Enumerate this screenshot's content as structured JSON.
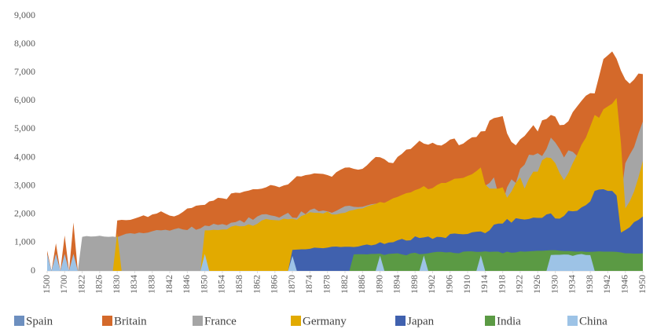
{
  "chart_data": {
    "type": "area",
    "categories": [
      1500,
      null,
      null,
      null,
      1700,
      null,
      null,
      null,
      1822,
      null,
      null,
      null,
      1826,
      null,
      null,
      null,
      1830,
      null,
      null,
      null,
      1834,
      null,
      null,
      null,
      1838,
      null,
      null,
      null,
      1842,
      null,
      null,
      null,
      1846,
      null,
      null,
      null,
      1850,
      null,
      null,
      null,
      1854,
      null,
      null,
      null,
      1858,
      null,
      null,
      null,
      1862,
      null,
      null,
      null,
      1866,
      null,
      null,
      null,
      1870,
      null,
      null,
      null,
      1874,
      null,
      null,
      null,
      1878,
      null,
      null,
      null,
      1882,
      null,
      null,
      null,
      1886,
      null,
      null,
      null,
      1890,
      null,
      null,
      null,
      1894,
      null,
      null,
      null,
      1898,
      null,
      null,
      null,
      1902,
      null,
      null,
      null,
      1906,
      null,
      null,
      null,
      1910,
      null,
      null,
      null,
      1914,
      null,
      null,
      null,
      1918,
      null,
      null,
      null,
      1922,
      null,
      null,
      null,
      1926,
      null,
      null,
      null,
      1930,
      null,
      null,
      null,
      1934,
      null,
      null,
      null,
      1938,
      null,
      null,
      null,
      1942,
      null,
      null,
      null,
      1946,
      null,
      null,
      null,
      1950
    ],
    "series": [
      {
        "name": "Spain",
        "color": "#6d8fbf",
        "values": [
          661,
          null,
          853,
          null,
          853,
          null,
          1008,
          null,
          null,
          null,
          null,
          null,
          null,
          null,
          null,
          null,
          null,
          null,
          null,
          null,
          null,
          null,
          null,
          null,
          null,
          null,
          null,
          null,
          null,
          null,
          null,
          null,
          null,
          null,
          null,
          null,
          null,
          null,
          null,
          null,
          null,
          null,
          null,
          null,
          null,
          null,
          null,
          null,
          null,
          null,
          null,
          null,
          null,
          null,
          null,
          null,
          null,
          null,
          null,
          null,
          null,
          null,
          null,
          null,
          null,
          null,
          null,
          null,
          null,
          null,
          null,
          null,
          null,
          null,
          null,
          null,
          null,
          null,
          null,
          null,
          null,
          null,
          null,
          null,
          null,
          null,
          null,
          null,
          null,
          null,
          null,
          null,
          null,
          null,
          null,
          null,
          null,
          null,
          null,
          null,
          null,
          null,
          null,
          null,
          null,
          null,
          null,
          null,
          null,
          null,
          null,
          null,
          null,
          null,
          null,
          null,
          null,
          null,
          null,
          null,
          null,
          null,
          null,
          null,
          null,
          null,
          null,
          null,
          null,
          null,
          null,
          null,
          null,
          null,
          null,
          null,
          null
        ]
      },
      {
        "name": "Britain",
        "color": "#d4692a",
        "values": [
          714,
          null,
          974,
          null,
          1250,
          null,
          1706,
          null,
          null,
          null,
          null,
          null,
          null,
          null,
          null,
          null,
          1780,
          1800,
          1790,
          1800,
          1850,
          1900,
          1960,
          1900,
          1990,
          2020,
          2100,
          2020,
          1950,
          1920,
          1980,
          2080,
          2200,
          2220,
          2300,
          2320,
          2330,
          2450,
          2480,
          2580,
          2560,
          2530,
          2730,
          2760,
          2750,
          2800,
          2830,
          2880,
          2880,
          2900,
          2950,
          3030,
          3000,
          2950,
          3010,
          3050,
          3190,
          3340,
          3330,
          3380,
          3400,
          3440,
          3430,
          3420,
          3380,
          3320,
          3480,
          3570,
          3640,
          3650,
          3600,
          3570,
          3600,
          3720,
          3880,
          4020,
          4010,
          3940,
          3820,
          3800,
          4020,
          4130,
          4280,
          4300,
          4440,
          4590,
          4490,
          4450,
          4520,
          4440,
          4420,
          4510,
          4630,
          4670,
          4430,
          4490,
          4610,
          4710,
          4720,
          4920,
          4930,
          5300,
          5390,
          5420,
          5460,
          4850,
          4550,
          4430,
          4640,
          4760,
          4950,
          5140,
          4920,
          5310,
          5360,
          5500,
          5440,
          5140,
          5150,
          5280,
          5600,
          5800,
          6000,
          6180,
          6270,
          6260,
          6860,
          7470,
          7600,
          7740,
          7480,
          7060,
          6750,
          6600,
          6750,
          6960,
          6940
        ]
      },
      {
        "name": "France",
        "color": "#a5a5a5",
        "values": [
          null,
          null,
          null,
          null,
          null,
          null,
          null,
          null,
          1200,
          1230,
          1210,
          1220,
          1240,
          1210,
          1200,
          1210,
          1190,
          1250,
          1310,
          1330,
          1310,
          1350,
          1330,
          1350,
          1400,
          1440,
          1430,
          1450,
          1420,
          1470,
          1510,
          1460,
          1440,
          1560,
          1450,
          1500,
          1600,
          1580,
          1660,
          1620,
          1650,
          1610,
          1700,
          1720,
          1790,
          1700,
          1890,
          1800,
          1920,
          1990,
          2000,
          1960,
          1930,
          1880,
          1970,
          2050,
          1880,
          1870,
          2100,
          2000,
          2150,
          2200,
          2100,
          2130,
          2100,
          2050,
          2120,
          2200,
          2280,
          2300,
          2260,
          2250,
          2260,
          2310,
          2350,
          2370,
          2380,
          2400,
          2450,
          2450,
          2580,
          2550,
          2640,
          2600,
          2700,
          2850,
          2880,
          2860,
          2820,
          2880,
          2890,
          2920,
          2950,
          3070,
          3040,
          3150,
          2940,
          3180,
          3450,
          3480,
          3000,
          3100,
          3300,
          2700,
          2400,
          2950,
          3230,
          3100,
          3600,
          3750,
          4100,
          4080,
          4150,
          4050,
          4300,
          4700,
          4530,
          4300,
          4000,
          4250,
          4200,
          4050,
          4200,
          4450,
          4470,
          4800,
          3650,
          3250,
          3050,
          2800,
          2200,
          2600,
          3800,
          4100,
          4370,
          4850,
          5270
        ]
      },
      {
        "name": "Germany",
        "color": "#e2aa00",
        "values": [
          null,
          null,
          null,
          null,
          null,
          null,
          null,
          null,
          null,
          null,
          null,
          null,
          null,
          null,
          null,
          null,
          1330,
          null,
          null,
          null,
          null,
          null,
          null,
          null,
          null,
          null,
          null,
          null,
          null,
          null,
          null,
          null,
          null,
          null,
          null,
          null,
          1430,
          1430,
          1450,
          1440,
          1460,
          1460,
          1560,
          1600,
          1570,
          1580,
          1640,
          1590,
          1660,
          1780,
          1830,
          1800,
          1790,
          1780,
          1840,
          1820,
          1840,
          1800,
          1930,
          1990,
          2070,
          2050,
          2050,
          2020,
          2090,
          1990,
          1990,
          2030,
          2050,
          2120,
          2150,
          2190,
          2200,
          2270,
          2320,
          2360,
          2430,
          2400,
          2480,
          2560,
          2610,
          2680,
          2740,
          2770,
          2850,
          2900,
          2990,
          2880,
          2920,
          3030,
          3100,
          3100,
          3170,
          3250,
          3260,
          3280,
          3350,
          3410,
          3520,
          3650,
          3050,
          2900,
          2900,
          2900,
          2950,
          2580,
          2800,
          3100,
          3300,
          2900,
          3250,
          3500,
          3500,
          3900,
          4000,
          3980,
          3800,
          3450,
          3200,
          3450,
          3800,
          4100,
          4450,
          4700,
          5100,
          5500,
          5400,
          5700,
          5800,
          5900,
          6100,
          4500,
          2200,
          2450,
          2800,
          3300,
          3880
        ]
      },
      {
        "name": "Japan",
        "color": "#4061ae",
        "values": [
          null,
          null,
          null,
          null,
          null,
          null,
          null,
          null,
          null,
          null,
          null,
          null,
          null,
          null,
          null,
          null,
          null,
          null,
          null,
          null,
          null,
          null,
          null,
          null,
          null,
          null,
          null,
          null,
          null,
          null,
          null,
          null,
          null,
          null,
          null,
          null,
          null,
          null,
          null,
          null,
          null,
          null,
          null,
          null,
          null,
          null,
          null,
          null,
          null,
          null,
          null,
          null,
          null,
          null,
          null,
          null,
          740,
          750,
          760,
          760,
          780,
          820,
          810,
          800,
          820,
          850,
          860,
          840,
          850,
          850,
          840,
          860,
          900,
          930,
          900,
          930,
          1010,
          950,
          1000,
          1010,
          1080,
          1130,
          1070,
          1080,
          1220,
          1160,
          1180,
          1210,
          1130,
          1200,
          1190,
          1160,
          1300,
          1320,
          1300,
          1290,
          1300,
          1360,
          1380,
          1390,
          1330,
          1430,
          1630,
          1670,
          1670,
          1830,
          1700,
          1860,
          1830,
          1810,
          1830,
          1880,
          1870,
          1870,
          1990,
          2030,
          1850,
          1840,
          1940,
          2120,
          2100,
          2120,
          2240,
          2320,
          2450,
          2820,
          2870,
          2880,
          2820,
          2820,
          2660,
          1350,
          1440,
          1540,
          1720,
          1800,
          1920
        ]
      },
      {
        "name": "India",
        "color": "#5b9a44",
        "values": [
          null,
          null,
          null,
          null,
          null,
          null,
          null,
          null,
          null,
          null,
          null,
          null,
          null,
          null,
          null,
          null,
          null,
          null,
          null,
          null,
          null,
          null,
          null,
          null,
          null,
          null,
          null,
          null,
          null,
          null,
          null,
          null,
          null,
          null,
          null,
          null,
          null,
          null,
          null,
          null,
          null,
          null,
          null,
          null,
          null,
          null,
          null,
          null,
          null,
          null,
          null,
          null,
          null,
          null,
          null,
          null,
          null,
          null,
          null,
          null,
          null,
          null,
          null,
          null,
          null,
          null,
          null,
          null,
          null,
          null,
          580,
          590,
          590,
          580,
          600,
          600,
          610,
          560,
          600,
          610,
          620,
          580,
          550,
          620,
          640,
          590,
          600,
          620,
          650,
          670,
          670,
          650,
          660,
          630,
          620,
          680,
          690,
          690,
          670,
          670,
          690,
          670,
          680,
          680,
          620,
          680,
          640,
          650,
          690,
          680,
          690,
          700,
          710,
          710,
          720,
          730,
          730,
          710,
          700,
          700,
          690,
          680,
          690,
          670,
          670,
          680,
          690,
          680,
          680,
          680,
          670,
          650,
          620,
          620,
          610,
          610,
          620
        ]
      },
      {
        "name": "China",
        "color": "#9dc3e6",
        "values": [
          600,
          null,
          600,
          null,
          600,
          null,
          600,
          null,
          null,
          null,
          null,
          null,
          null,
          null,
          null,
          null,
          null,
          null,
          null,
          null,
          null,
          null,
          null,
          null,
          null,
          null,
          null,
          null,
          null,
          null,
          null,
          null,
          null,
          null,
          null,
          null,
          600,
          null,
          null,
          null,
          null,
          null,
          null,
          null,
          null,
          null,
          null,
          null,
          null,
          null,
          null,
          null,
          null,
          null,
          null,
          null,
          530,
          null,
          null,
          null,
          null,
          null,
          null,
          null,
          null,
          null,
          null,
          null,
          null,
          null,
          null,
          null,
          null,
          null,
          null,
          null,
          540,
          null,
          null,
          null,
          null,
          null,
          null,
          null,
          null,
          null,
          545,
          null,
          null,
          null,
          null,
          null,
          null,
          null,
          null,
          null,
          null,
          null,
          null,
          552,
          null,
          null,
          null,
          null,
          null,
          null,
          null,
          null,
          null,
          null,
          null,
          null,
          null,
          null,
          null,
          562,
          568,
          567,
          578,
          574,
          528,
          575,
          595,
          560,
          557,
          null,
          null,
          null,
          null,
          null,
          null,
          null,
          null,
          null,
          null,
          null,
          null
        ]
      }
    ],
    "ylim": [
      0,
      9000
    ],
    "yticks": [
      0,
      {
        "value": 1000,
        "label": "1,000"
      },
      {
        "value": 2000,
        "label": "2,000"
      },
      {
        "value": 3000,
        "label": "3,000"
      },
      {
        "value": 4000,
        "label": "4,000"
      },
      {
        "value": 5000,
        "label": "5,000"
      },
      {
        "value": 6000,
        "label": "6,000"
      },
      {
        "value": 7000,
        "label": "7,000"
      },
      {
        "value": 8000,
        "label": "8,000"
      },
      {
        "value": 9000,
        "label": "9,000"
      }
    ],
    "grid": false,
    "legend": "bottom"
  }
}
